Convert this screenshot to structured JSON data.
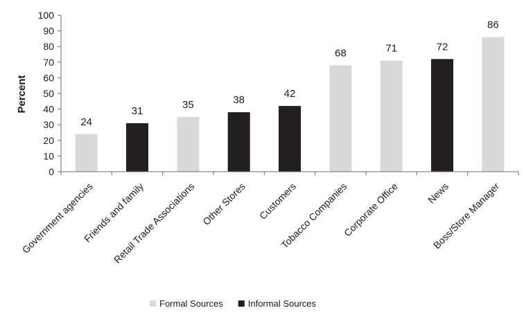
{
  "chart_data": {
    "type": "bar",
    "title": "",
    "xlabel": "",
    "ylabel": "Percent",
    "ylim": [
      0,
      100
    ],
    "yticks": [
      0,
      10,
      20,
      30,
      40,
      50,
      60,
      70,
      80,
      90,
      100
    ],
    "grid": false,
    "legend_position": "bottom-center",
    "categories": [
      "Government agencies",
      "Friends and family",
      "Retail Trade Associations",
      "Other Stores",
      "Customers",
      "Tobacco Companies",
      "Corporate Office",
      "News",
      "Boss/Store Manager"
    ],
    "values": [
      24,
      31,
      35,
      38,
      42,
      68,
      71,
      72,
      86
    ],
    "bar_groups": [
      "formal",
      "informal",
      "formal",
      "informal",
      "informal",
      "formal",
      "formal",
      "informal",
      "formal"
    ],
    "legend": [
      {
        "key": "formal",
        "label": "Formal Sources",
        "color": "#d9d9d9"
      },
      {
        "key": "informal",
        "label": "Informal Sources",
        "color": "#231f20"
      }
    ]
  }
}
